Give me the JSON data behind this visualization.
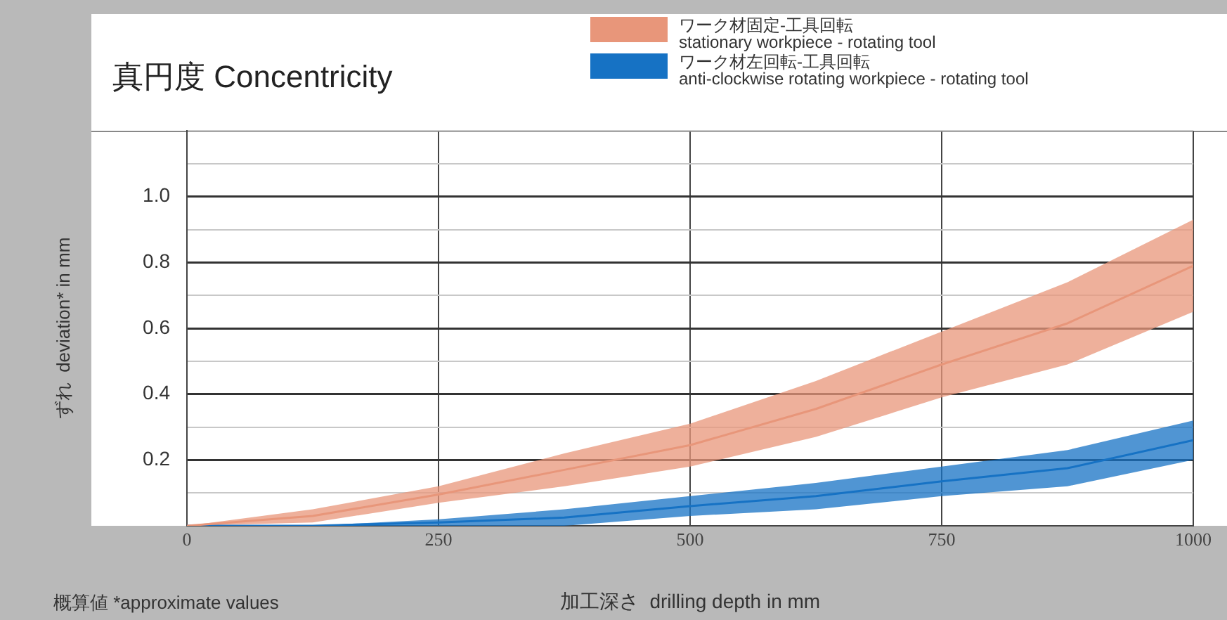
{
  "chart_data": {
    "type": "line",
    "title": "真円度 Concentricity",
    "xlabel": "加工深さ  drilling depth in mm",
    "ylabel": "ずれ  deviation* in mm",
    "annotations": [
      "概算値  *approximate values"
    ],
    "x": [
      0,
      125,
      250,
      375,
      500,
      625,
      750,
      875,
      1000
    ],
    "series": [
      {
        "name": "ワーク材固定-工具回転\nstationary workpiece - rotating tool",
        "color": "#e8967a",
        "values": [
          0,
          0.03,
          0.095,
          0.17,
          0.245,
          0.355,
          0.49,
          0.615,
          0.79
        ],
        "lower": [
          0,
          0.01,
          0.07,
          0.12,
          0.18,
          0.27,
          0.39,
          0.49,
          0.65
        ],
        "upper": [
          0,
          0.05,
          0.12,
          0.22,
          0.31,
          0.44,
          0.59,
          0.74,
          0.93
        ]
      },
      {
        "name": "ワーク材左回転-工具回転\nanti-clockwise rotating workpiece - rotating tool",
        "color": "#1672c4",
        "values": [
          0,
          0,
          0.01,
          0.025,
          0.06,
          0.09,
          0.135,
          0.175,
          0.26
        ],
        "lower": [
          0,
          0,
          0,
          0,
          0.03,
          0.05,
          0.09,
          0.12,
          0.2
        ],
        "upper": [
          0,
          0,
          0.02,
          0.05,
          0.09,
          0.13,
          0.18,
          0.23,
          0.32
        ]
      }
    ],
    "xlim": [
      0,
      1000
    ],
    "xticks": [
      0,
      250,
      500,
      750,
      1000
    ],
    "ylim": [
      0,
      1.2
    ],
    "yticks": [
      {
        "value": 0,
        "label": null
      },
      {
        "value": 0.1,
        "label": null
      },
      {
        "value": 0.2,
        "label": "0.2"
      },
      {
        "value": 0.3,
        "label": null
      },
      {
        "value": 0.4,
        "label": "0.4"
      },
      {
        "value": 0.5,
        "label": null
      },
      {
        "value": 0.6,
        "label": "0.6"
      },
      {
        "value": 0.7,
        "label": null
      },
      {
        "value": 0.8,
        "label": "0.8"
      },
      {
        "value": 0.9,
        "label": null
      },
      {
        "value": 1.0,
        "label": "1.0"
      },
      {
        "value": 1.1,
        "label": null
      },
      {
        "value": 1.2,
        "label": null
      }
    ],
    "grid": true,
    "legend": "top right",
    "marker": "none",
    "line_style": "solid"
  }
}
